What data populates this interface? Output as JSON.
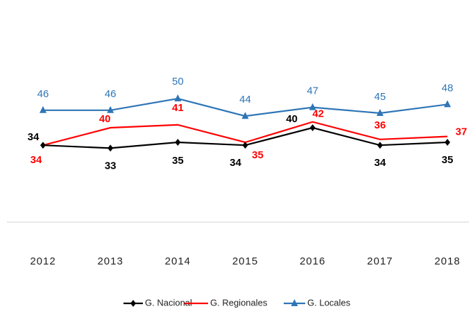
{
  "chart_data": {
    "type": "line",
    "categories": [
      "2012",
      "2013",
      "2014",
      "2015",
      "2016",
      "2017",
      "2018"
    ],
    "series": [
      {
        "name": "G. Nacional",
        "color": "#000000",
        "marker": "diamond",
        "values": [
          34,
          33,
          35,
          34,
          40,
          34,
          35
        ]
      },
      {
        "name": "G. Regionales",
        "color": "#ff0000",
        "marker": "none",
        "values": [
          34,
          40,
          41,
          35,
          42,
          36,
          37
        ]
      },
      {
        "name": "G. Locales",
        "color": "#2e75b6",
        "marker": "triangle",
        "values": [
          46,
          46,
          50,
          44,
          47,
          45,
          48
        ]
      }
    ],
    "legend": "bottom"
  }
}
